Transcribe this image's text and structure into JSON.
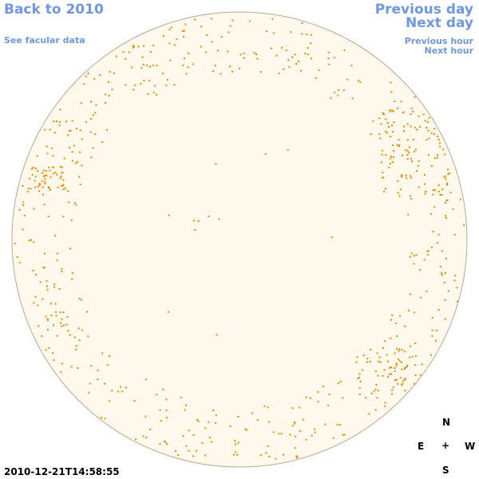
{
  "nav": {
    "back": "Back to 2010",
    "facular": "See facular data",
    "prev_day": "Previous day",
    "next_day": "Next day",
    "prev_hour": "Previous hour",
    "next_hour": "Next hour"
  },
  "timestamp": "2010-12-21T14:58:55",
  "compass": {
    "n": "N",
    "e": "E",
    "w": "W",
    "s": "S",
    "center": "+"
  },
  "colors": {
    "link": "#6f97e0",
    "disk_fill": "#fff8ec",
    "disk_border": "#b8a890",
    "marker": "#e68a00"
  }
}
